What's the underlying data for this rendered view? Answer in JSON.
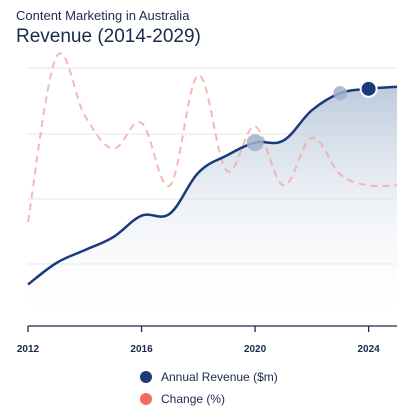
{
  "header": {
    "subtitle": "Content Marketing in Australia",
    "title": "Revenue (2014-2029)"
  },
  "colors": {
    "revenue": "#1b3a7a",
    "revenue_fill": "#c9d4e3",
    "change": "#f4a6a0",
    "gridline": "#e3e5e9",
    "axis": "#1b2a4a"
  },
  "legend": [
    {
      "label": "Annual Revenue ($m)",
      "color": "#1b3a7a"
    },
    {
      "label": "Change (%)",
      "color": "#f26b5e"
    }
  ],
  "chart_data": {
    "type": "line",
    "x_ticks": [
      "2012",
      "2016",
      "2020",
      "2024"
    ],
    "xlim": [
      2012,
      2025
    ],
    "grid": true,
    "legend_position": "bottom-center",
    "series": [
      {
        "name": "Annual Revenue ($m)",
        "style": "solid area",
        "x": [
          2012,
          2013,
          2014,
          2015,
          2016,
          2017,
          2018,
          2019,
          2020,
          2021,
          2022,
          2023,
          2024,
          2025
        ],
        "values": [
          1.0,
          1.5,
          1.8,
          2.1,
          2.6,
          2.65,
          3.6,
          4.0,
          4.3,
          4.35,
          5.05,
          5.45,
          5.55,
          5.6
        ]
      },
      {
        "name": "Change (%)",
        "style": "dashed",
        "x": [
          2012,
          2013,
          2014,
          2015,
          2016,
          2017,
          2018,
          2019,
          2020,
          2021,
          2022,
          2023,
          2024,
          2025
        ],
        "values": [
          -12,
          33,
          17,
          8,
          15,
          -2,
          28,
          2,
          14,
          -2,
          11,
          1,
          -2,
          -2
        ]
      }
    ],
    "highlight_points": [
      {
        "series": 0,
        "x": 2020,
        "emphasis": "light"
      },
      {
        "series": 0,
        "x": 2023,
        "emphasis": "light"
      },
      {
        "series": 0,
        "x": 2024,
        "emphasis": "strong"
      }
    ]
  }
}
